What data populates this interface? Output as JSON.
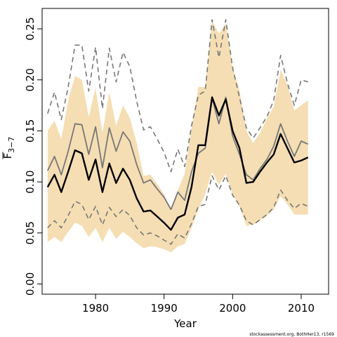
{
  "chart_data": {
    "type": "line",
    "xlabel": "Year",
    "ylabel_main": "F",
    "ylabel_sub": "3−7",
    "xlim": [
      1972.2,
      2014
    ],
    "ylim": [
      -0.01,
      0.27
    ],
    "x_ticks": [
      1980,
      1990,
      2000,
      2010
    ],
    "x_tick_labels": [
      "1980",
      "1990",
      "2000",
      "2010"
    ],
    "y_ticks": [
      0.0,
      0.05,
      0.1,
      0.15,
      0.2,
      0.25
    ],
    "y_tick_labels": [
      "0.00",
      "0.05",
      "0.10",
      "0.15",
      "0.20",
      "0.25"
    ],
    "grid": false,
    "credit": "stockassessment.org, BothHer13, r1569",
    "colors": {
      "band": "#f5deb3",
      "estimate": "#000000",
      "previous": "#777777"
    },
    "x": [
      1973,
      1974,
      1975,
      1976,
      1977,
      1978,
      1979,
      1980,
      1981,
      1982,
      1983,
      1984,
      1985,
      1986,
      1987,
      1988,
      1989,
      1990,
      1991,
      1992,
      1993,
      1994,
      1995,
      1996,
      1997,
      1998,
      1999,
      2000,
      2001,
      2002,
      2003,
      2004,
      2005,
      2006,
      2007,
      2008,
      2009,
      2010,
      2011
    ],
    "series": [
      {
        "role": "band",
        "lower": [
          0.041,
          0.046,
          0.041,
          0.051,
          0.06,
          0.057,
          0.046,
          0.055,
          0.041,
          0.055,
          0.044,
          0.051,
          0.046,
          0.04,
          0.035,
          0.037,
          0.036,
          0.034,
          0.031,
          0.037,
          0.039,
          0.055,
          0.073,
          0.088,
          0.11,
          0.097,
          0.108,
          0.088,
          0.076,
          0.057,
          0.058,
          0.062,
          0.067,
          0.073,
          0.086,
          0.078,
          0.068,
          0.068,
          0.068
        ],
        "upper": [
          0.15,
          0.16,
          0.142,
          0.18,
          0.204,
          0.2,
          0.164,
          0.192,
          0.148,
          0.188,
          0.155,
          0.175,
          0.163,
          0.138,
          0.106,
          0.107,
          0.098,
          0.088,
          0.071,
          0.092,
          0.108,
          0.153,
          0.193,
          0.193,
          0.258,
          0.245,
          0.255,
          0.212,
          0.19,
          0.15,
          0.138,
          0.148,
          0.162,
          0.174,
          0.21,
          0.195,
          0.17,
          0.175,
          0.18
        ]
      },
      {
        "role": "estimate",
        "values": [
          0.095,
          0.107,
          0.09,
          0.11,
          0.131,
          0.128,
          0.102,
          0.122,
          0.09,
          0.118,
          0.099,
          0.113,
          0.102,
          0.084,
          0.071,
          0.072,
          0.066,
          0.06,
          0.053,
          0.065,
          0.068,
          0.095,
          0.136,
          0.136,
          0.183,
          0.165,
          0.181,
          0.15,
          0.133,
          0.099,
          0.1,
          0.11,
          0.119,
          0.127,
          0.147,
          0.133,
          0.119,
          0.121,
          0.124
        ]
      },
      {
        "role": "previous-estimate",
        "values": [
          0.111,
          0.125,
          0.107,
          0.13,
          0.157,
          0.156,
          0.127,
          0.154,
          0.114,
          0.153,
          0.13,
          0.149,
          0.14,
          0.117,
          0.099,
          0.102,
          0.093,
          0.085,
          0.073,
          0.09,
          0.082,
          0.11,
          0.128,
          0.133,
          0.182,
          0.157,
          0.183,
          0.145,
          0.127,
          0.107,
          0.102,
          0.113,
          0.122,
          0.135,
          0.157,
          0.14,
          0.125,
          0.14,
          0.137
        ]
      },
      {
        "role": "previous-lower",
        "values": [
          0.055,
          0.062,
          0.055,
          0.067,
          0.081,
          0.078,
          0.063,
          0.076,
          0.058,
          0.075,
          0.066,
          0.073,
          0.067,
          0.055,
          0.048,
          0.05,
          0.047,
          0.043,
          0.039,
          0.049,
          0.045,
          0.059,
          0.076,
          0.078,
          0.106,
          0.092,
          0.106,
          0.087,
          0.077,
          0.062,
          0.058,
          0.063,
          0.068,
          0.075,
          0.092,
          0.082,
          0.074,
          0.079,
          0.076
        ]
      },
      {
        "role": "previous-upper",
        "values": [
          0.167,
          0.188,
          0.161,
          0.193,
          0.234,
          0.234,
          0.189,
          0.232,
          0.172,
          0.231,
          0.198,
          0.227,
          0.213,
          0.179,
          0.151,
          0.154,
          0.142,
          0.129,
          0.11,
          0.132,
          0.115,
          0.155,
          0.185,
          0.189,
          0.259,
          0.222,
          0.259,
          0.212,
          0.183,
          0.153,
          0.143,
          0.153,
          0.164,
          0.18,
          0.224,
          0.197,
          0.175,
          0.2,
          0.198
        ]
      }
    ]
  }
}
